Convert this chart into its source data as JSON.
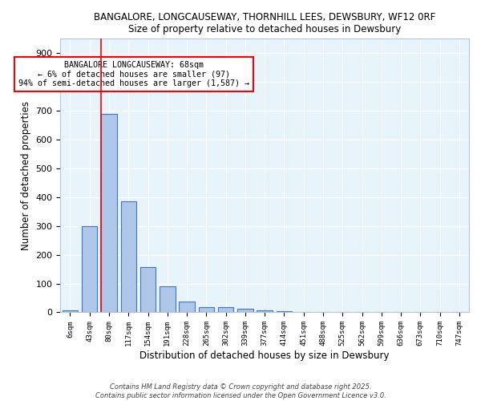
{
  "title_line1": "BANGALORE, LONGCAUSEWAY, THORNHILL LEES, DEWSBURY, WF12 0RF",
  "title_line2": "Size of property relative to detached houses in Dewsbury",
  "xlabel": "Distribution of detached houses by size in Dewsbury",
  "ylabel": "Number of detached properties",
  "bar_labels": [
    "6sqm",
    "43sqm",
    "80sqm",
    "117sqm",
    "154sqm",
    "191sqm",
    "228sqm",
    "265sqm",
    "302sqm",
    "339sqm",
    "377sqm",
    "414sqm",
    "451sqm",
    "488sqm",
    "525sqm",
    "562sqm",
    "599sqm",
    "636sqm",
    "673sqm",
    "710sqm",
    "747sqm"
  ],
  "bar_values": [
    8,
    300,
    690,
    385,
    158,
    90,
    38,
    18,
    17,
    13,
    8,
    5,
    0,
    0,
    0,
    0,
    0,
    0,
    0,
    0,
    0
  ],
  "bar_color": "#aec6e8",
  "bar_edge_color": "#4472c4",
  "red_line_index": 1.6,
  "annotation_text": "BANGALORE LONGCAUSEWAY: 68sqm\n← 6% of detached houses are smaller (97)\n94% of semi-detached houses are larger (1,587) →",
  "annotation_box_color": "white",
  "annotation_box_edge_color": "red",
  "ylim": [
    0,
    950
  ],
  "yticks": [
    0,
    100,
    200,
    300,
    400,
    500,
    600,
    700,
    800,
    900
  ],
  "background_color": "#e8f4fc",
  "grid_color": "white",
  "footer_line1": "Contains HM Land Registry data © Crown copyright and database right 2025.",
  "footer_line2": "Contains public sector information licensed under the Open Government Licence v3.0."
}
